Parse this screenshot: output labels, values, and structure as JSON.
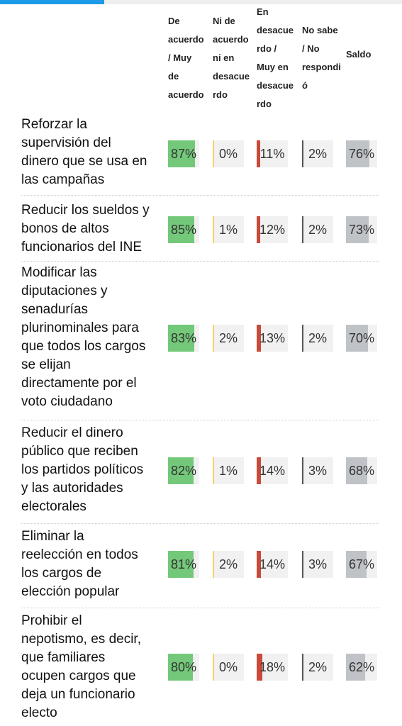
{
  "progress": 0.26,
  "colors": {
    "agree": "#74c87a",
    "neutral": "#f2d16b",
    "disagree": "#c94a3b",
    "nosabe": "#555555",
    "saldo": "#bfc2c6",
    "cellBg": "#f1f1f1"
  },
  "chart_data": {
    "type": "table",
    "columns": [
      {
        "key": "agree",
        "label": "De\nacuerdo\n/ Muy\nde\nacuerdo"
      },
      {
        "key": "neutral",
        "label": "Ni de\nacuerdo\nni en\ndesacue\nrdo"
      },
      {
        "key": "disagree",
        "label": "En\ndesacue\nrdo /\nMuy en\ndesacue\nrdo"
      },
      {
        "key": "nosabe",
        "label": "No sabe\n/ No\nrespondi\nó"
      },
      {
        "key": "saldo",
        "label": "Saldo"
      }
    ],
    "rows": [
      {
        "label": "Reforzar la\nsupervisión del\ndinero que se usa en\nlas campañas",
        "values": [
          87,
          0,
          11,
          2,
          76
        ],
        "display": [
          "87%",
          "0%",
          "11%",
          "2%",
          "76%"
        ]
      },
      {
        "label": "Reducir los sueldos y\nbonos de altos\nfuncionarios del INE",
        "values": [
          85,
          1,
          12,
          2,
          73
        ],
        "display": [
          "85%",
          "1%",
          "12%",
          "2%",
          "73%"
        ]
      },
      {
        "label": "Modificar las\ndiputaciones y\nsenadurías\nplurinominales para\nque todos los cargos\nse elijan\ndirectamente por el\nvoto ciudadano",
        "values": [
          83,
          2,
          13,
          2,
          70
        ],
        "display": [
          "83%",
          "2%",
          "13%",
          "2%",
          "70%"
        ]
      },
      {
        "label": "Reducir el dinero\npúblico que reciben\nlos partidos políticos\ny las autoridades\nelectorales",
        "values": [
          82,
          1,
          14,
          3,
          68
        ],
        "display": [
          "82%",
          "1%",
          "14%",
          "3%",
          "68%"
        ]
      },
      {
        "label": "Eliminar la\nreelección en todos\nlos cargos de\nelección popular",
        "values": [
          81,
          2,
          14,
          3,
          67
        ],
        "display": [
          "81%",
          "2%",
          "14%",
          "3%",
          "67%"
        ]
      },
      {
        "label": "Prohibir el\nnepotismo, es decir,\nque familiares\nocupen cargos que\ndeja un funcionario\nelecto",
        "values": [
          80,
          0,
          18,
          2,
          62
        ],
        "display": [
          "80%",
          "0%",
          "18%",
          "2%",
          "62%"
        ]
      }
    ]
  }
}
